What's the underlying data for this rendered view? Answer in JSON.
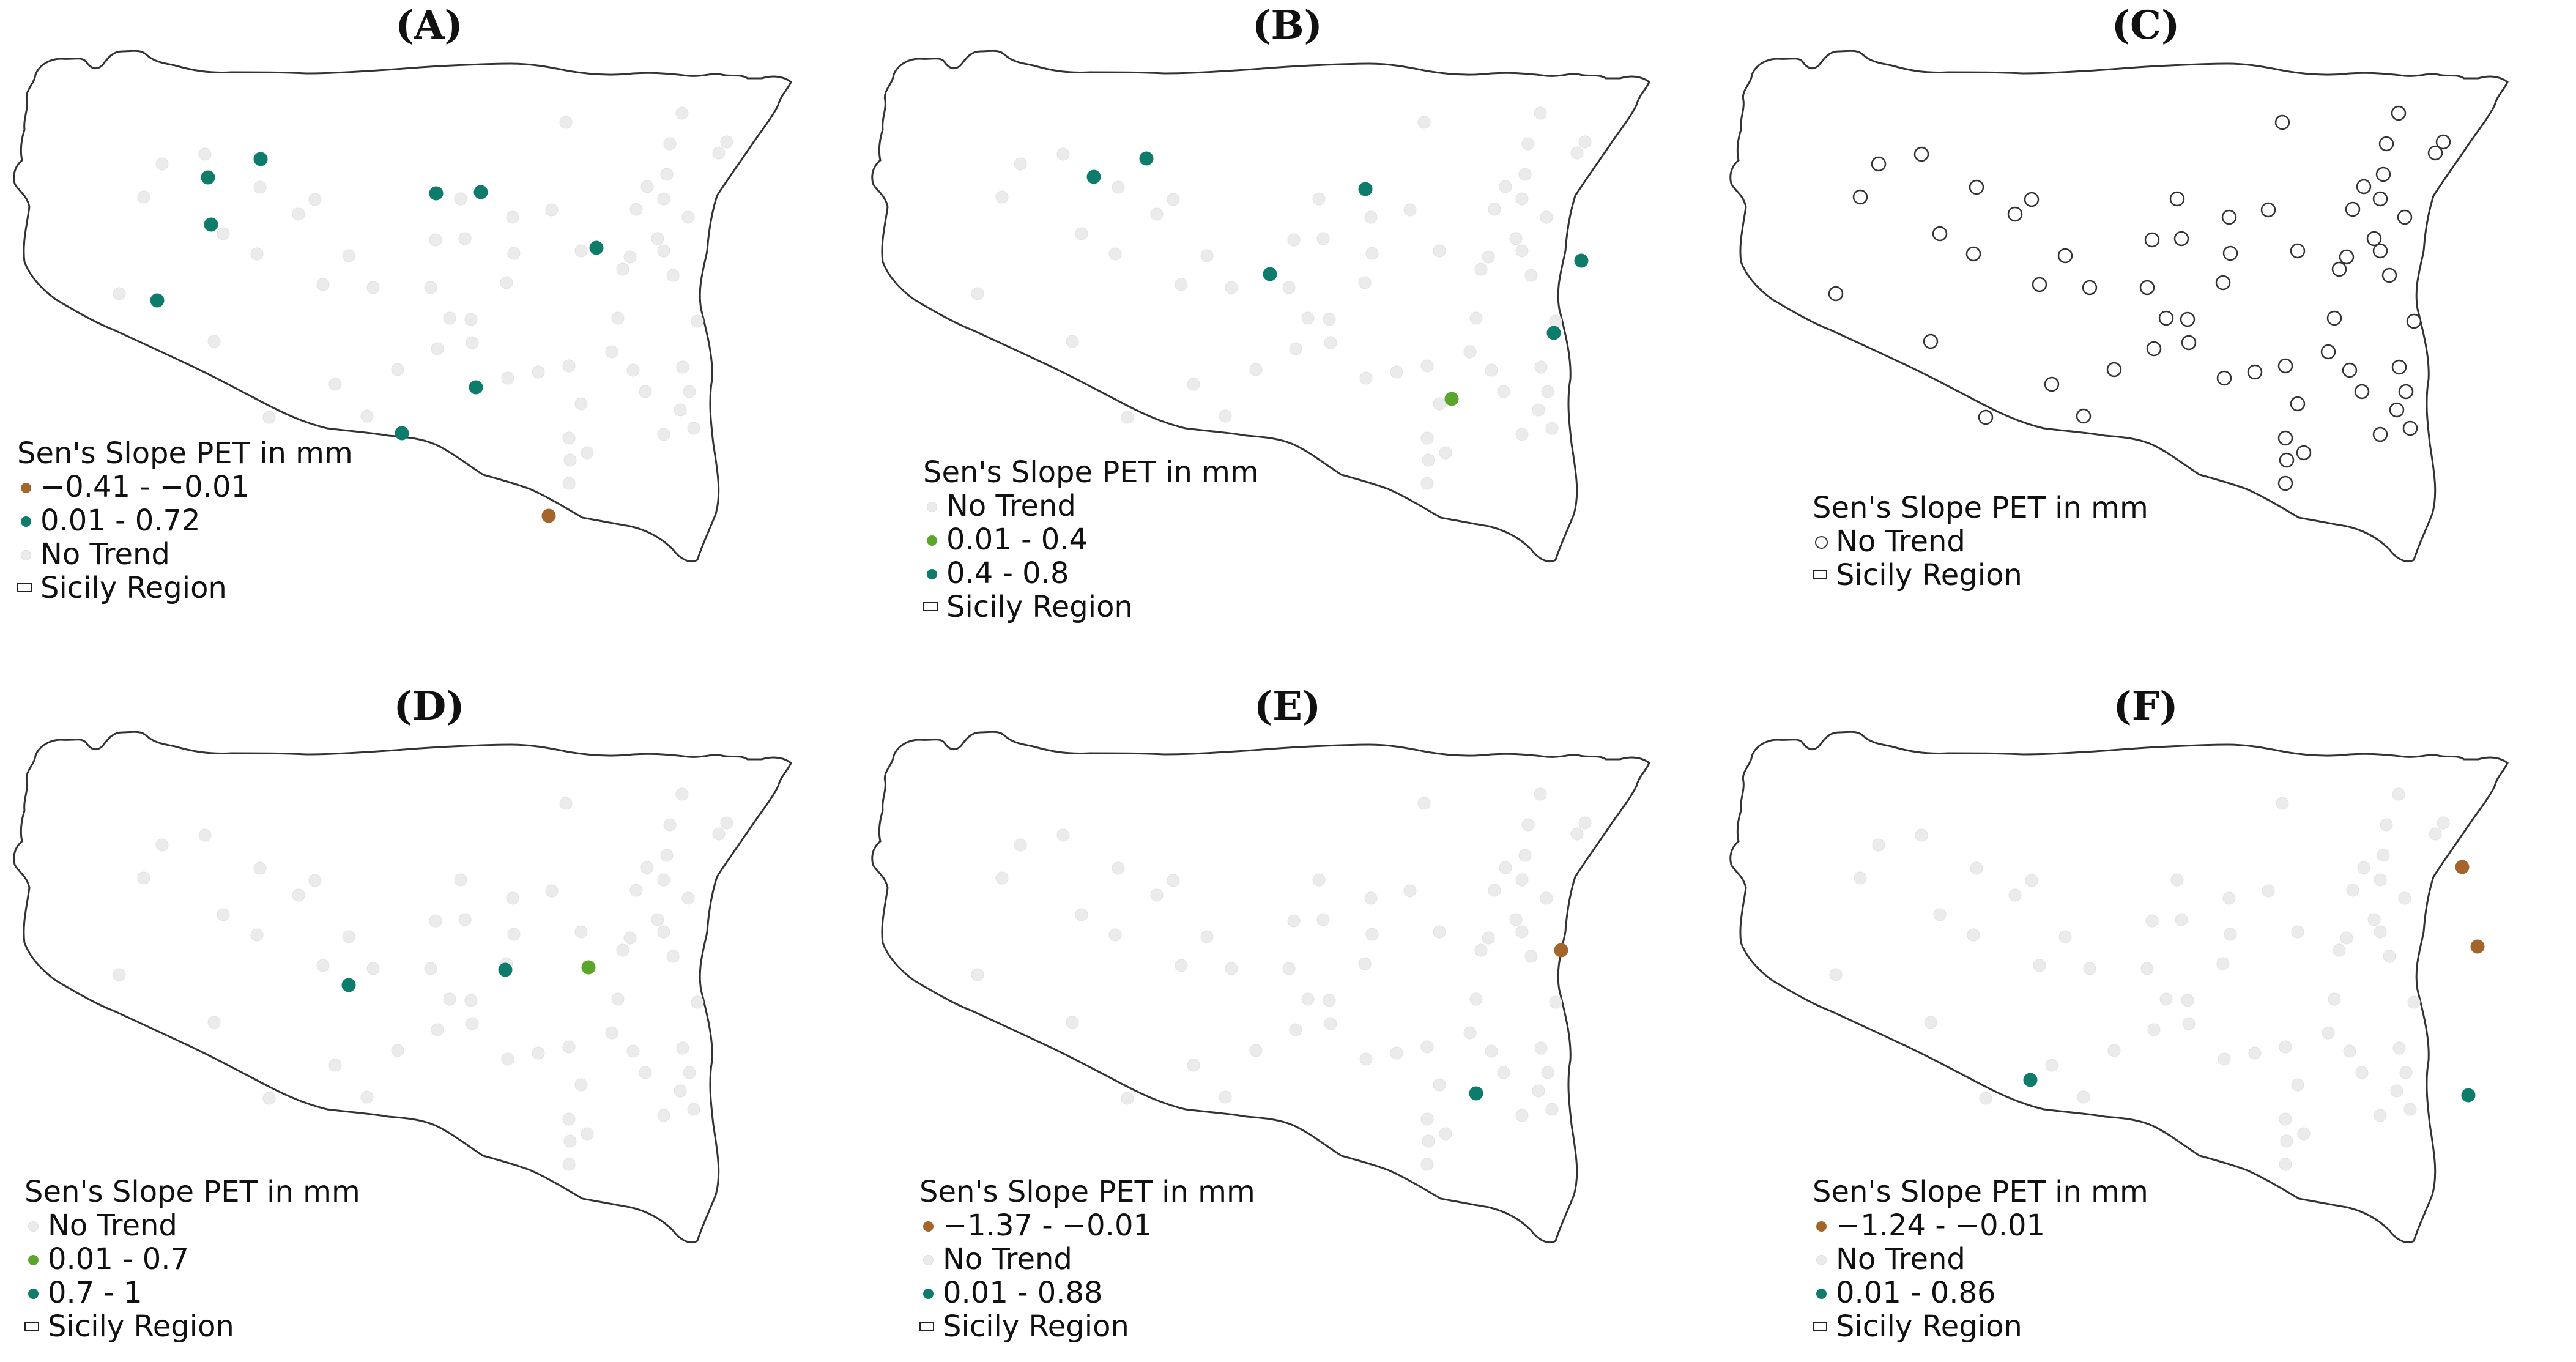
{
  "figure": {
    "colors": {
      "decrease": "#a3652a",
      "increase_dark": "#0e7c6b",
      "increase_light": "#5aa52a",
      "no_trend": "#ebebeb",
      "outline": "#333333"
    },
    "legend_title": "Sen's Slope PET in mm",
    "region_label": "Sicily Region",
    "panels": [
      {
        "label": "(A)",
        "legend": [
          {
            "label": "−0.41 - −0.01",
            "symbol": "decrease"
          },
          {
            "label": "0.01 - 0.72",
            "symbol": "increase_dark"
          },
          {
            "label": "No Trend",
            "symbol": "no_trend"
          },
          {
            "label": "Sicily Region",
            "symbol": "region"
          }
        ],
        "stations": [
          "decrease",
          "increase_dark",
          "increase_dark",
          "increase_dark",
          "increase_dark",
          "increase_dark",
          "increase_dark",
          "increase_dark",
          "increase_dark",
          "increase_dark"
        ]
      },
      {
        "label": "(B)",
        "legend": [
          {
            "label": "No Trend",
            "symbol": "no_trend"
          },
          {
            "label": "0.01 - 0.4",
            "symbol": "increase_light"
          },
          {
            "label": "0.4 - 0.8",
            "symbol": "increase_dark"
          },
          {
            "label": "Sicily Region",
            "symbol": "region"
          }
        ]
      },
      {
        "label": "(C)",
        "legend": [
          {
            "label": "No Trend",
            "symbol": "no_trend_open"
          },
          {
            "label": "Sicily Region",
            "symbol": "region"
          }
        ]
      },
      {
        "label": "(D)",
        "legend": [
          {
            "label": "No Trend",
            "symbol": "no_trend"
          },
          {
            "label": "0.01 - 0.7",
            "symbol": "increase_light"
          },
          {
            "label": "0.7 - 1",
            "symbol": "increase_dark"
          },
          {
            "label": "Sicily Region",
            "symbol": "region"
          }
        ]
      },
      {
        "label": "(E)",
        "legend": [
          {
            "label": "−1.37 - −0.01",
            "symbol": "decrease"
          },
          {
            "label": "No Trend",
            "symbol": "no_trend"
          },
          {
            "label": "0.01 - 0.88",
            "symbol": "increase_dark"
          },
          {
            "label": "Sicily Region",
            "symbol": "region"
          }
        ]
      },
      {
        "label": "(F)",
        "legend": [
          {
            "label": "−1.24 - −0.01",
            "symbol": "decrease"
          },
          {
            "label": "No Trend",
            "symbol": "no_trend"
          },
          {
            "label": "0.01 - 0.86",
            "symbol": "increase_dark"
          },
          {
            "label": "Sicily Region",
            "symbol": "region"
          }
        ]
      }
    ]
  }
}
